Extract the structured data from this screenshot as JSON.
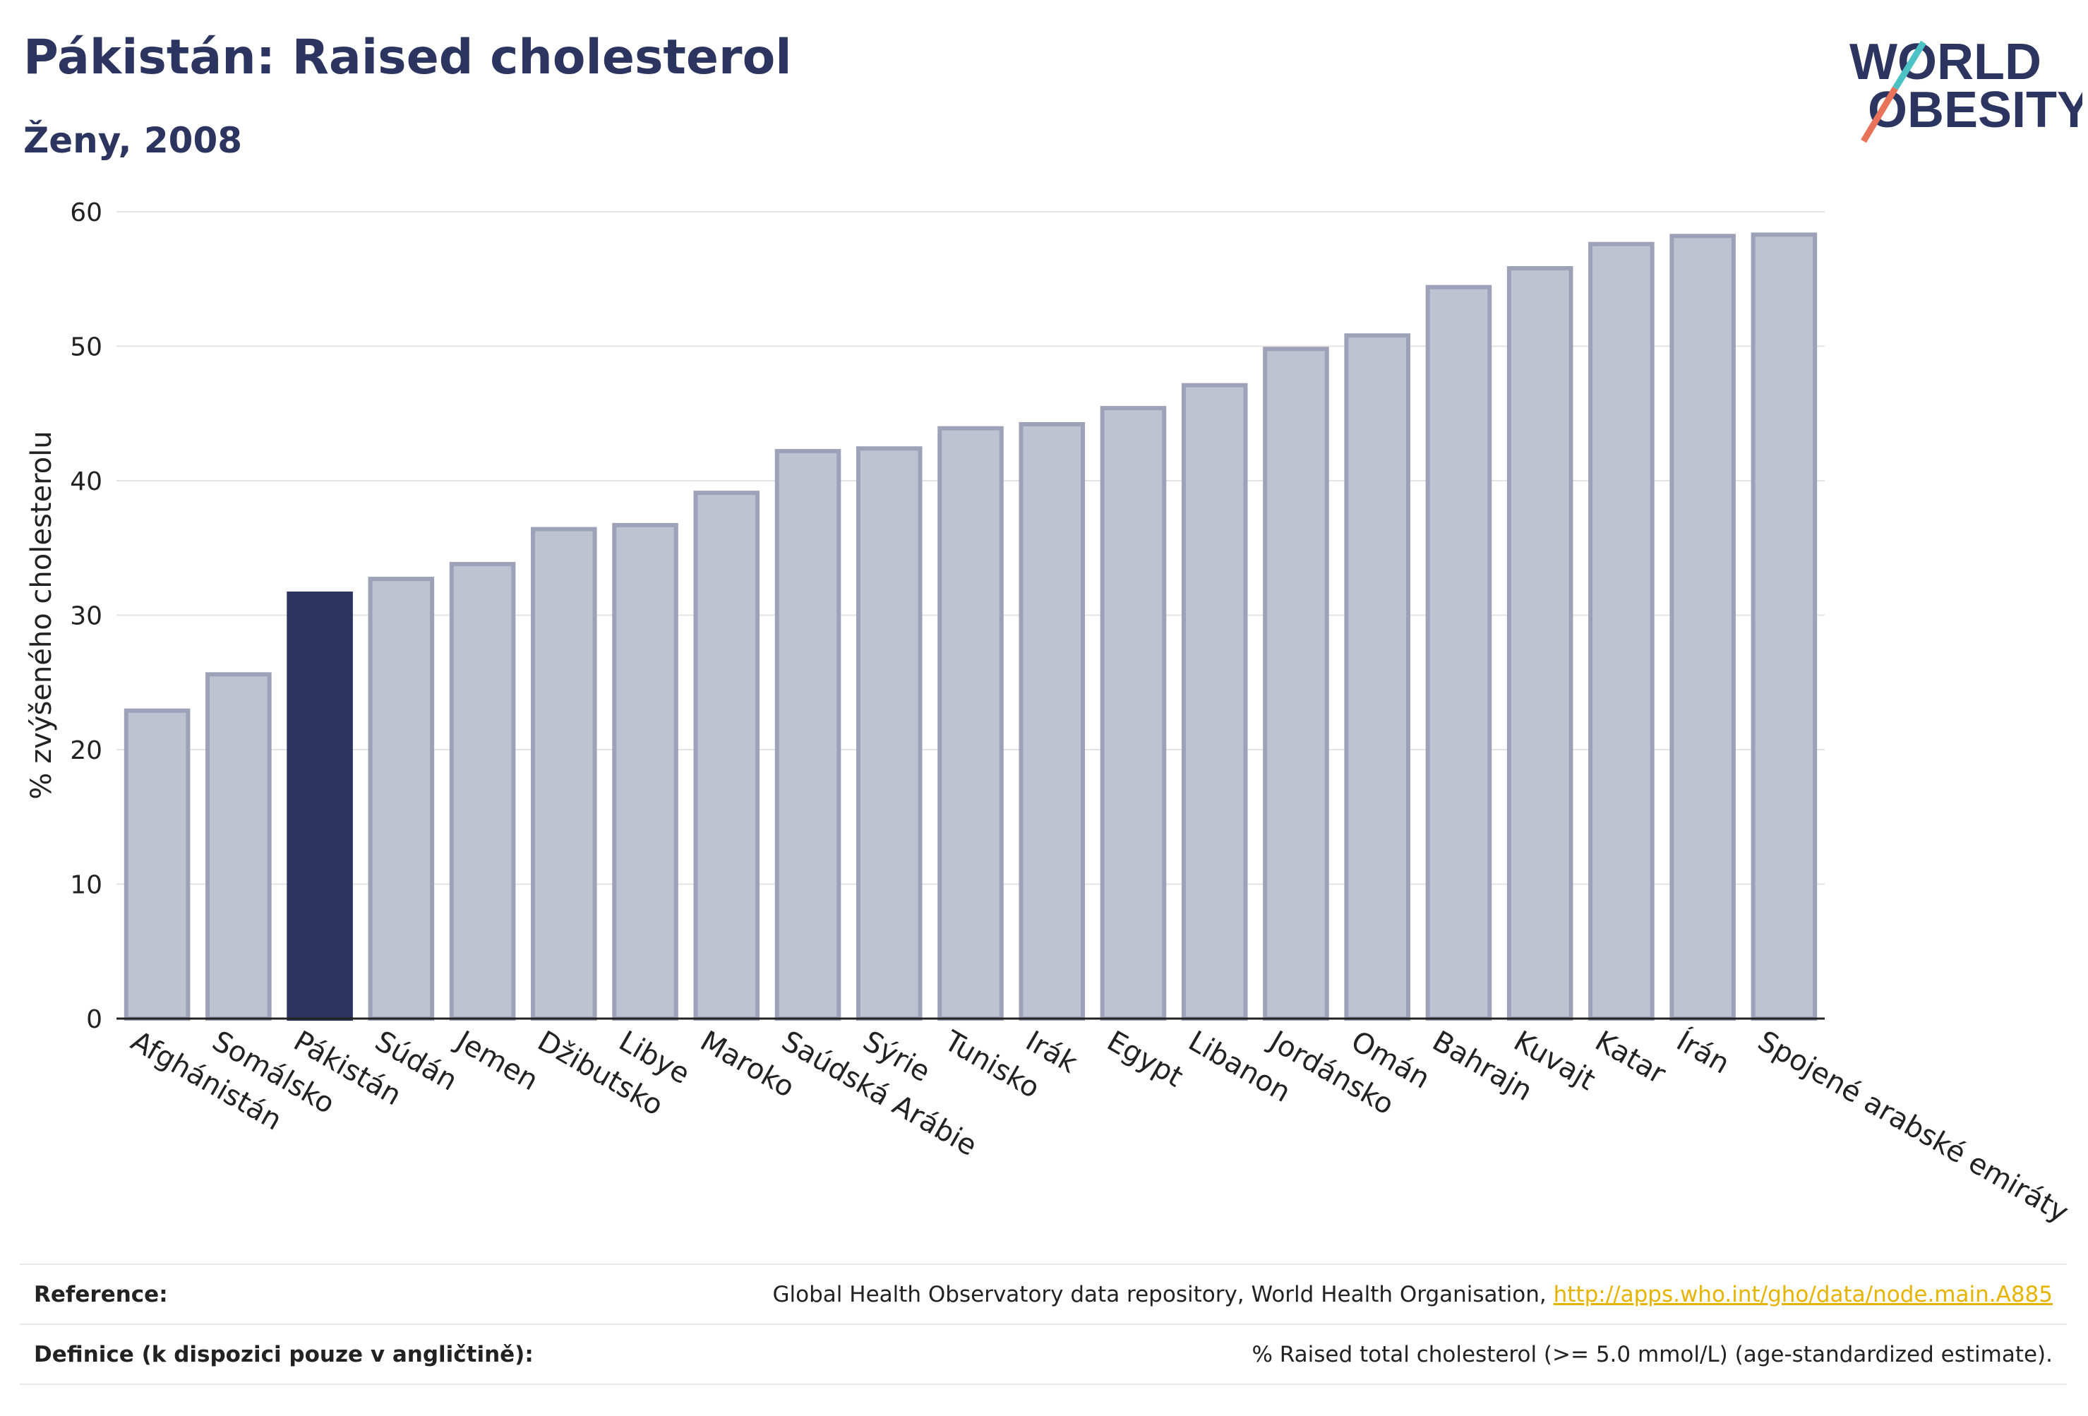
{
  "header": {
    "title": "Pákistán: Raised cholesterol",
    "subtitle": "Ženy, 2008"
  },
  "logo": {
    "line1": "WORLD",
    "line2": "OBESITY",
    "accent_colors": [
      "#e8735a",
      "#4cc2c4"
    ],
    "text_color": "#2c355f"
  },
  "chart_data": {
    "type": "bar",
    "title": "Pákistán: Raised cholesterol",
    "subtitle": "Ženy, 2008",
    "xlabel": "",
    "ylabel": "% zvýšeného cholesterolu",
    "ylim": [
      0,
      60
    ],
    "yticks": [
      0,
      10,
      20,
      30,
      40,
      50,
      60
    ],
    "grid": true,
    "categories": [
      "Afghánistán",
      "Somálsko",
      "Pákistán",
      "Súdán",
      "Jemen",
      "Džibutsko",
      "Libye",
      "Maroko",
      "Saúdská Arábie",
      "Sýrie",
      "Tunisko",
      "Irák",
      "Egypt",
      "Libanon",
      "Jordánsko",
      "Omán",
      "Bahrajn",
      "Kuvajt",
      "Katar",
      "Írán",
      "Spojené arabské emiráty"
    ],
    "values": [
      22.9,
      25.6,
      31.6,
      32.7,
      33.8,
      36.4,
      36.7,
      39.1,
      42.2,
      42.4,
      43.9,
      44.2,
      45.4,
      47.1,
      49.8,
      50.8,
      54.4,
      55.8,
      57.6,
      58.2,
      58.3
    ],
    "highlight": "Pákistán",
    "colors": {
      "highlight": "#2c355f",
      "default_fill": "#bfc2d0",
      "default_stroke": "#9ea2b8",
      "grid": "#e3e3e3"
    }
  },
  "footer": {
    "reference_label": "Reference:",
    "reference_text": "Global Health Observatory data repository, World Health Organisation,",
    "reference_link": "http://apps.who.int/gho/data/node.main.A885",
    "definition_label": "Definice (k dispozici pouze v angličtině):",
    "definition_text": "% Raised total cholesterol (>= 5.0 mmol/L) (age-standardized estimate)."
  }
}
